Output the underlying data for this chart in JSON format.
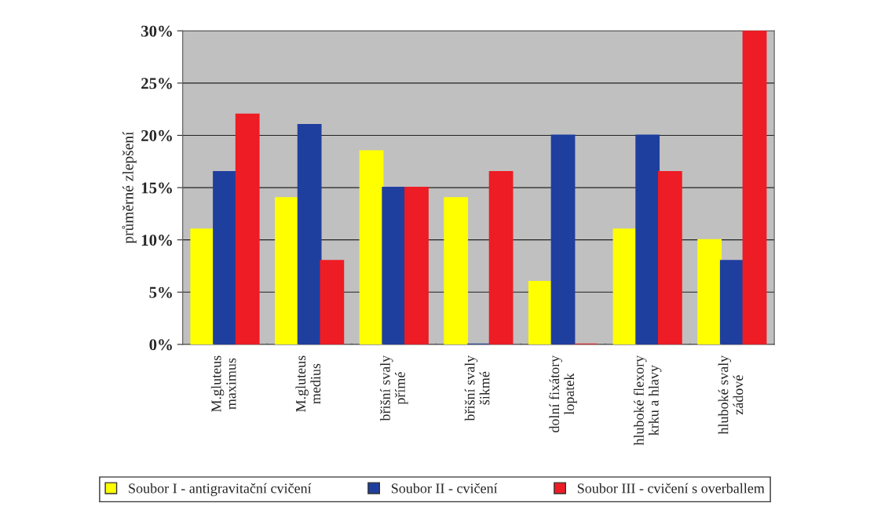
{
  "chart_data": {
    "type": "bar",
    "ylabel": "průměrné zlepšení",
    "categories": [
      "M.gluteus\nmaximus",
      "M.gluteus\nmedius",
      "břišní svaly\npřímé",
      "břišní svaly\nšikmé",
      "dolní fixátory\nlopatek",
      "hluboké flexory\nkrku a hlavy",
      "hluboké svaly\nzádové"
    ],
    "series": [
      {
        "name": "Soubor I - antigravitační cvičení",
        "color": "#ffff00",
        "values": [
          11,
          14,
          18.5,
          14,
          6,
          11,
          10
        ]
      },
      {
        "name": "Soubor II - cvičení",
        "color": "#1f3f9f",
        "values": [
          16.5,
          21,
          15,
          0,
          20,
          20,
          8
        ]
      },
      {
        "name": "Soubor III - cvičení s overballem",
        "color": "#ee1c24",
        "values": [
          22,
          8,
          15,
          16.5,
          0,
          16.5,
          30
        ]
      }
    ],
    "ylim": [
      0,
      30
    ],
    "yticks": [
      {
        "value": 0,
        "label": "0%"
      },
      {
        "value": 5,
        "label": "5%"
      },
      {
        "value": 10,
        "label": "10%"
      },
      {
        "value": 15,
        "label": "15%"
      },
      {
        "value": 20,
        "label": "20%"
      },
      {
        "value": 25,
        "label": "25%"
      },
      {
        "value": 30,
        "label": "30%"
      }
    ],
    "grid": "y",
    "legend": "bottom"
  }
}
